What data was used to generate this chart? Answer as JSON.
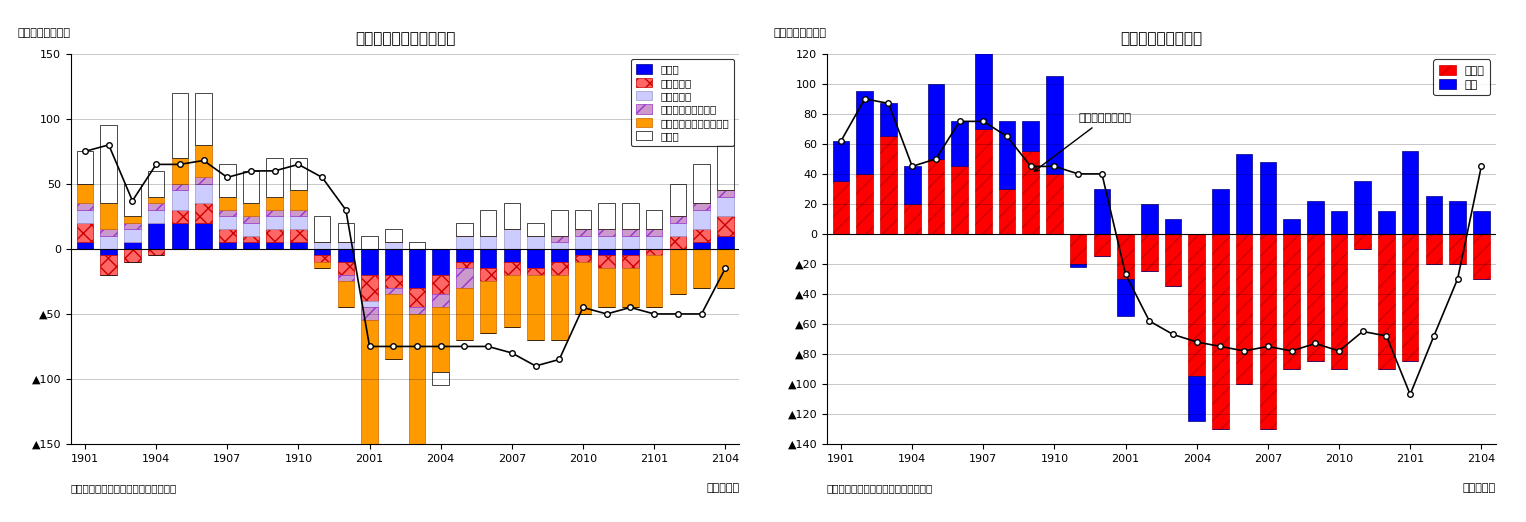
{
  "chart1": {
    "title": "産業別・就業者数の推移",
    "ylabel": "（前年差、万人）",
    "xlabel": "（年・月）",
    "source": "（資料）総務省統計局「労働力調査」",
    "ylim": [
      -150,
      150
    ],
    "yticks": [
      150,
      100,
      50,
      0,
      -50,
      -100,
      -150
    ],
    "ytick_labels": [
      "150",
      "100",
      "50",
      "0",
      "▲50",
      "▲100",
      "▲150"
    ],
    "xtick_labels": [
      "1901",
      "1904",
      "1907",
      "1910",
      "2001",
      "2004",
      "2007",
      "2010",
      "2101",
      "2104"
    ],
    "categories": [
      "製造業",
      "卸売・小売",
      "医療・福祉",
      "宿泊・飲食サービス",
      "生活関連サービス・娯楽",
      "その他"
    ],
    "colors": [
      "#0000FF",
      "#FF6666",
      "#CCCCFF",
      "#CC99CC",
      "#FF9900",
      "#FFFFFF"
    ],
    "hatch": [
      "",
      "xx",
      "",
      "//",
      "",
      ""
    ],
    "edgecolors": [
      "#000080",
      "#CC0000",
      "#9999CC",
      "#9933CC",
      "#CC6600",
      "#000000"
    ],
    "data": {
      "製造業": [
        5,
        -5,
        5,
        20,
        20,
        20,
        5,
        5,
        5,
        5,
        -5,
        -10,
        -20,
        -20,
        -30,
        -20,
        -10,
        -15,
        -10,
        -15,
        -10,
        -5,
        -5,
        -5,
        0,
        0,
        5,
        10
      ],
      "卸売・小売": [
        15,
        -15,
        -10,
        -5,
        10,
        15,
        10,
        5,
        10,
        10,
        -5,
        -10,
        -20,
        -10,
        -15,
        -15,
        -5,
        -10,
        -10,
        -5,
        -10,
        -5,
        -10,
        -10,
        -5,
        10,
        10,
        15
      ],
      "医療・福祉": [
        10,
        10,
        10,
        10,
        15,
        15,
        10,
        10,
        10,
        10,
        5,
        5,
        -5,
        5,
        0,
        0,
        10,
        10,
        15,
        10,
        5,
        10,
        10,
        10,
        10,
        10,
        15,
        15
      ],
      "宿泊・飲食サービス": [
        5,
        5,
        5,
        5,
        5,
        5,
        5,
        5,
        5,
        5,
        0,
        -5,
        -10,
        -5,
        -5,
        -10,
        -15,
        0,
        0,
        0,
        5,
        5,
        5,
        5,
        5,
        5,
        5,
        5
      ],
      "生活関連サービス・娯楽": [
        15,
        20,
        5,
        5,
        20,
        25,
        10,
        10,
        10,
        15,
        -5,
        -20,
        -100,
        -50,
        -100,
        -50,
        -40,
        -40,
        -40,
        -50,
        -50,
        -40,
        -30,
        -30,
        -40,
        -35,
        -30,
        -30
      ],
      "その他": [
        25,
        60,
        25,
        20,
        50,
        40,
        25,
        25,
        30,
        25,
        20,
        15,
        10,
        10,
        5,
        -10,
        10,
        20,
        20,
        10,
        20,
        15,
        20,
        20,
        15,
        25,
        30,
        35
      ]
    },
    "line": [
      75,
      80,
      37,
      65,
      65,
      68,
      55,
      60,
      60,
      65,
      55,
      30,
      -75,
      -75,
      -75,
      -75,
      -75,
      -75,
      -80,
      -90,
      -85,
      -45,
      -50,
      -45,
      -50,
      -50,
      -50,
      -15
    ]
  },
  "chart2": {
    "title": "雇用形態別雇用者数",
    "ylabel": "（前年差、万人）",
    "xlabel": "（年・月）",
    "source": "（資料）総務省統計局「労働力調査」",
    "annotation": "役員を除く雇用者",
    "ylim": [
      -140,
      120
    ],
    "yticks": [
      120,
      100,
      80,
      60,
      40,
      20,
      0,
      -20,
      -40,
      -60,
      -80,
      -100,
      -120,
      -140
    ],
    "ytick_labels": [
      "120",
      "100",
      "80",
      "60",
      "40",
      "20",
      "0",
      "▲20",
      "▲40",
      "▲60",
      "▲80",
      "▲100",
      "▲120",
      "▲140"
    ],
    "xtick_labels": [
      "1901",
      "1904",
      "1907",
      "1910",
      "2001",
      "2004",
      "2007",
      "2010",
      "2101",
      "2104"
    ],
    "categories": [
      "非正規",
      "正規"
    ],
    "colors": [
      "#FF0000",
      "#0000FF"
    ],
    "hatch": [
      "//",
      ""
    ],
    "edgecolors": [
      "#CC0000",
      "#000080"
    ],
    "data": {
      "非正規": [
        35,
        40,
        65,
        20,
        50,
        45,
        70,
        30,
        55,
        40,
        -20,
        -15,
        -30,
        -25,
        -35,
        -95,
        -130,
        -100,
        -130,
        -90,
        -85,
        -90,
        -10,
        -90,
        -85,
        -20,
        -20,
        -30
      ],
      "正規": [
        27,
        55,
        22,
        25,
        50,
        30,
        75,
        45,
        20,
        65,
        -2,
        30,
        -25,
        20,
        10,
        -30,
        30,
        53,
        48,
        10,
        22,
        15,
        35,
        15,
        55,
        25,
        22,
        15
      ]
    },
    "line": [
      62,
      90,
      87,
      45,
      50,
      75,
      75,
      65,
      45,
      45,
      40,
      40,
      -27,
      -58,
      -67,
      -72,
      -75,
      -78,
      -75,
      -78,
      -73,
      -78,
      -65,
      -68,
      -107,
      -68,
      -30,
      45
    ]
  }
}
